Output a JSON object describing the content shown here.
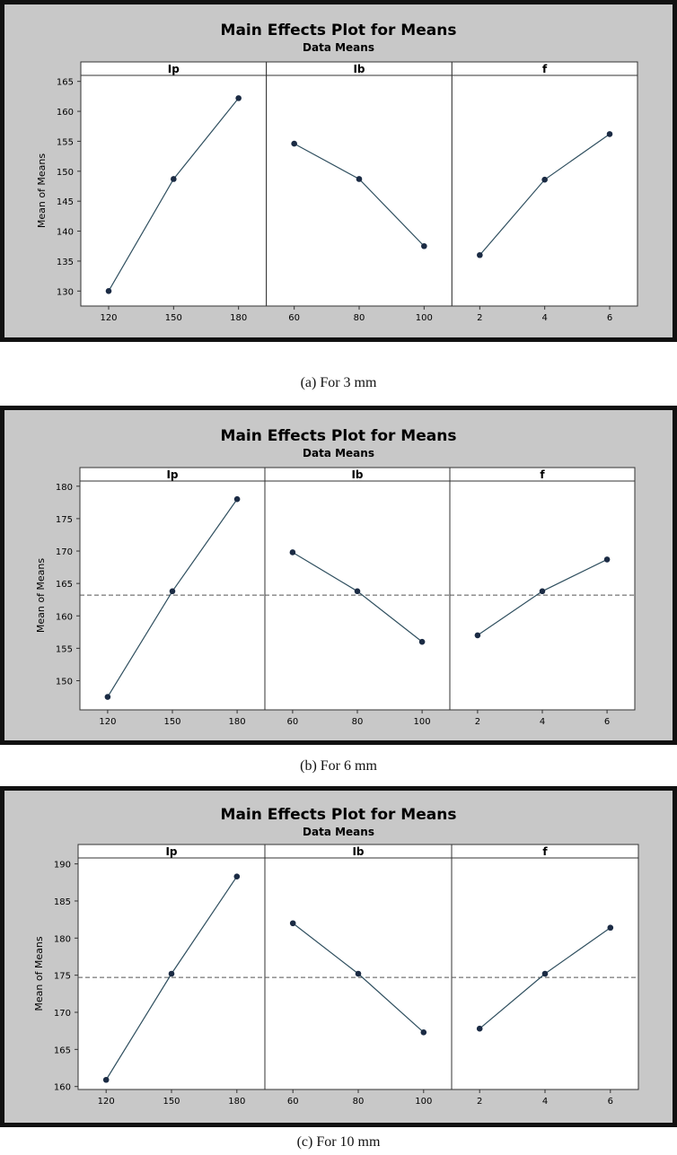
{
  "chart_data": [
    {
      "type": "line",
      "title": "Main Effects Plot for Means",
      "subtitle": "Data Means",
      "ylabel": "Mean of Means",
      "ylim": [
        127.5,
        166
      ],
      "yticks": [
        130,
        135,
        140,
        145,
        150,
        155,
        160,
        165
      ],
      "reference_line": null,
      "panels": [
        {
          "name": "Ip",
          "categories": [
            "120",
            "150",
            "180"
          ],
          "values": [
            130.0,
            148.7,
            162.2
          ]
        },
        {
          "name": "Ib",
          "categories": [
            "60",
            "80",
            "100"
          ],
          "values": [
            154.6,
            148.7,
            137.5
          ]
        },
        {
          "name": "f",
          "categories": [
            "2",
            "4",
            "6"
          ],
          "values": [
            136.0,
            148.6,
            156.2
          ]
        }
      ],
      "caption": "(a) For 3 mm"
    },
    {
      "type": "line",
      "title": "Main Effects Plot for Means",
      "subtitle": "Data Means",
      "ylabel": "Mean of Means",
      "ylim": [
        145.5,
        180.8
      ],
      "yticks": [
        150,
        155,
        160,
        165,
        170,
        175,
        180
      ],
      "reference_line": 163.2,
      "panels": [
        {
          "name": "Ip",
          "categories": [
            "120",
            "150",
            "180"
          ],
          "values": [
            147.5,
            163.8,
            178.0
          ]
        },
        {
          "name": "Ib",
          "categories": [
            "60",
            "80",
            "100"
          ],
          "values": [
            169.8,
            163.8,
            156.0
          ]
        },
        {
          "name": "f",
          "categories": [
            "2",
            "4",
            "6"
          ],
          "values": [
            157.0,
            163.8,
            168.7
          ]
        }
      ],
      "caption": "(b) For 6 mm"
    },
    {
      "type": "line",
      "title": "Main Effects Plot for Means",
      "subtitle": "Data Means",
      "ylabel": "Mean of Means",
      "ylim": [
        159.6,
        190.8
      ],
      "yticks": [
        160,
        165,
        170,
        175,
        180,
        185,
        190
      ],
      "reference_line": 174.7,
      "panels": [
        {
          "name": "Ip",
          "categories": [
            "120",
            "150",
            "180"
          ],
          "values": [
            160.9,
            175.2,
            188.3
          ]
        },
        {
          "name": "Ib",
          "categories": [
            "60",
            "80",
            "100"
          ],
          "values": [
            182.0,
            175.2,
            167.3
          ]
        },
        {
          "name": "f",
          "categories": [
            "2",
            "4",
            "6"
          ],
          "values": [
            167.8,
            175.2,
            181.4
          ]
        }
      ],
      "caption": "(c) For 10 mm"
    }
  ],
  "colors": {
    "frame_border": "#111111",
    "background": "#c8c8c8",
    "plot_area": "#ffffff",
    "line": "#2f4f5f",
    "marker": "#1b2b44",
    "reference": "#555555",
    "text": "#000000"
  }
}
